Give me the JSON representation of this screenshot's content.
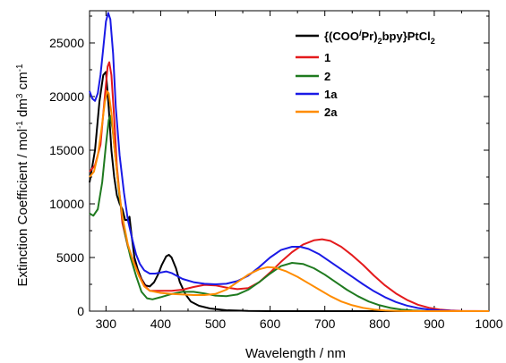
{
  "chart_data": {
    "type": "line",
    "title": "",
    "xlabel": "Wavelength / nm",
    "ylabel": "Extinction Coefficient / mol⁻¹ dm³ cm⁻¹",
    "xlim": [
      270,
      1000
    ],
    "ylim": [
      0,
      28000
    ],
    "x_ticks": [
      300,
      400,
      500,
      600,
      700,
      800,
      900,
      1000
    ],
    "y_ticks": [
      0,
      5000,
      10000,
      15000,
      20000,
      25000
    ],
    "grid": false,
    "legend_position": "top-right",
    "legend_labels": [
      "{(COOiPr)2bpy}PtCl2",
      "1",
      "2",
      "1a",
      "2a"
    ],
    "series": [
      {
        "name": "{(COOiPr)2bpy}PtCl2",
        "color": "#000000",
        "points": [
          [
            270,
            12000
          ],
          [
            280,
            15000
          ],
          [
            288,
            19500
          ],
          [
            295,
            22000
          ],
          [
            300,
            22300
          ],
          [
            305,
            19000
          ],
          [
            310,
            15000
          ],
          [
            315,
            12500
          ],
          [
            320,
            10800
          ],
          [
            325,
            10000
          ],
          [
            330,
            9500
          ],
          [
            335,
            8500
          ],
          [
            340,
            8500
          ],
          [
            343,
            8800
          ],
          [
            347,
            7000
          ],
          [
            352,
            5000
          ],
          [
            358,
            3900
          ],
          [
            365,
            3000
          ],
          [
            372,
            2400
          ],
          [
            380,
            2300
          ],
          [
            388,
            2700
          ],
          [
            395,
            3400
          ],
          [
            402,
            4300
          ],
          [
            410,
            5100
          ],
          [
            415,
            5250
          ],
          [
            420,
            5000
          ],
          [
            428,
            4000
          ],
          [
            435,
            2700
          ],
          [
            445,
            1600
          ],
          [
            455,
            900
          ],
          [
            470,
            500
          ],
          [
            490,
            250
          ],
          [
            520,
            80
          ],
          [
            560,
            20
          ],
          [
            600,
            0
          ],
          [
            700,
            0
          ],
          [
            800,
            0
          ],
          [
            1000,
            0
          ]
        ]
      },
      {
        "name": "1",
        "color": "#e41a1c",
        "points": [
          [
            270,
            13000
          ],
          [
            280,
            13600
          ],
          [
            290,
            15500
          ],
          [
            297,
            19500
          ],
          [
            303,
            22800
          ],
          [
            306,
            23200
          ],
          [
            310,
            22000
          ],
          [
            315,
            18000
          ],
          [
            320,
            13500
          ],
          [
            330,
            8200
          ],
          [
            340,
            6000
          ],
          [
            350,
            4700
          ],
          [
            360,
            3400
          ],
          [
            370,
            2400
          ],
          [
            380,
            1900
          ],
          [
            400,
            1900
          ],
          [
            420,
            1900
          ],
          [
            440,
            2000
          ],
          [
            460,
            2250
          ],
          [
            480,
            2450
          ],
          [
            500,
            2400
          ],
          [
            520,
            2200
          ],
          [
            540,
            2050
          ],
          [
            560,
            2150
          ],
          [
            580,
            2700
          ],
          [
            600,
            3600
          ],
          [
            620,
            4600
          ],
          [
            640,
            5500
          ],
          [
            660,
            6200
          ],
          [
            680,
            6600
          ],
          [
            695,
            6700
          ],
          [
            710,
            6550
          ],
          [
            730,
            6000
          ],
          [
            750,
            5200
          ],
          [
            770,
            4300
          ],
          [
            790,
            3300
          ],
          [
            810,
            2400
          ],
          [
            830,
            1650
          ],
          [
            850,
            1050
          ],
          [
            870,
            600
          ],
          [
            890,
            320
          ],
          [
            910,
            150
          ],
          [
            930,
            60
          ],
          [
            950,
            20
          ],
          [
            1000,
            0
          ]
        ]
      },
      {
        "name": "2",
        "color": "#1f7a1f",
        "points": [
          [
            270,
            9100
          ],
          [
            277,
            8900
          ],
          [
            285,
            9500
          ],
          [
            293,
            12000
          ],
          [
            300,
            15500
          ],
          [
            305,
            17800
          ],
          [
            308,
            18200
          ],
          [
            312,
            17000
          ],
          [
            318,
            14000
          ],
          [
            325,
            10500
          ],
          [
            335,
            7200
          ],
          [
            345,
            5000
          ],
          [
            355,
            3300
          ],
          [
            365,
            1800
          ],
          [
            375,
            1200
          ],
          [
            385,
            1100
          ],
          [
            400,
            1300
          ],
          [
            420,
            1600
          ],
          [
            440,
            1800
          ],
          [
            460,
            1800
          ],
          [
            480,
            1650
          ],
          [
            500,
            1450
          ],
          [
            520,
            1400
          ],
          [
            540,
            1550
          ],
          [
            560,
            2000
          ],
          [
            580,
            2700
          ],
          [
            600,
            3500
          ],
          [
            620,
            4200
          ],
          [
            640,
            4500
          ],
          [
            660,
            4400
          ],
          [
            680,
            4000
          ],
          [
            700,
            3400
          ],
          [
            720,
            2700
          ],
          [
            740,
            2000
          ],
          [
            760,
            1400
          ],
          [
            780,
            900
          ],
          [
            800,
            550
          ],
          [
            820,
            300
          ],
          [
            840,
            150
          ],
          [
            860,
            60
          ],
          [
            880,
            20
          ],
          [
            900,
            0
          ],
          [
            1000,
            0
          ]
        ]
      },
      {
        "name": "1a",
        "color": "#1a1ae6",
        "points": [
          [
            270,
            20500
          ],
          [
            275,
            19800
          ],
          [
            280,
            19600
          ],
          [
            285,
            20300
          ],
          [
            290,
            22000
          ],
          [
            295,
            24500
          ],
          [
            300,
            27000
          ],
          [
            304,
            27800
          ],
          [
            308,
            27200
          ],
          [
            313,
            24000
          ],
          [
            318,
            19000
          ],
          [
            325,
            14500
          ],
          [
            333,
            11000
          ],
          [
            340,
            8500
          ],
          [
            348,
            6700
          ],
          [
            355,
            5300
          ],
          [
            362,
            4400
          ],
          [
            370,
            3800
          ],
          [
            380,
            3500
          ],
          [
            390,
            3500
          ],
          [
            400,
            3600
          ],
          [
            410,
            3700
          ],
          [
            420,
            3550
          ],
          [
            440,
            3000
          ],
          [
            460,
            2700
          ],
          [
            480,
            2550
          ],
          [
            500,
            2500
          ],
          [
            520,
            2550
          ],
          [
            540,
            2800
          ],
          [
            560,
            3300
          ],
          [
            580,
            4100
          ],
          [
            600,
            5000
          ],
          [
            620,
            5700
          ],
          [
            640,
            6000
          ],
          [
            655,
            6000
          ],
          [
            670,
            5800
          ],
          [
            690,
            5300
          ],
          [
            710,
            4600
          ],
          [
            730,
            3900
          ],
          [
            750,
            3200
          ],
          [
            770,
            2500
          ],
          [
            790,
            1850
          ],
          [
            810,
            1300
          ],
          [
            830,
            850
          ],
          [
            850,
            520
          ],
          [
            870,
            290
          ],
          [
            890,
            150
          ],
          [
            910,
            70
          ],
          [
            930,
            25
          ],
          [
            950,
            0
          ],
          [
            1000,
            0
          ]
        ]
      },
      {
        "name": "2a",
        "color": "#ff8c00",
        "points": [
          [
            270,
            12500
          ],
          [
            278,
            13000
          ],
          [
            285,
            14500
          ],
          [
            292,
            17000
          ],
          [
            298,
            19500
          ],
          [
            302,
            20500
          ],
          [
            305,
            20300
          ],
          [
            310,
            18500
          ],
          [
            315,
            15500
          ],
          [
            322,
            12000
          ],
          [
            330,
            8800
          ],
          [
            340,
            6200
          ],
          [
            350,
            4600
          ],
          [
            360,
            3300
          ],
          [
            370,
            2300
          ],
          [
            380,
            1900
          ],
          [
            400,
            1700
          ],
          [
            420,
            1600
          ],
          [
            440,
            1550
          ],
          [
            460,
            1500
          ],
          [
            480,
            1500
          ],
          [
            500,
            1600
          ],
          [
            520,
            2000
          ],
          [
            540,
            2700
          ],
          [
            560,
            3400
          ],
          [
            580,
            3900
          ],
          [
            595,
            4100
          ],
          [
            610,
            4050
          ],
          [
            630,
            3700
          ],
          [
            650,
            3200
          ],
          [
            670,
            2600
          ],
          [
            690,
            2000
          ],
          [
            710,
            1400
          ],
          [
            730,
            900
          ],
          [
            750,
            550
          ],
          [
            770,
            300
          ],
          [
            790,
            150
          ],
          [
            810,
            60
          ],
          [
            830,
            20
          ],
          [
            850,
            0
          ],
          [
            1000,
            0
          ]
        ]
      }
    ]
  }
}
